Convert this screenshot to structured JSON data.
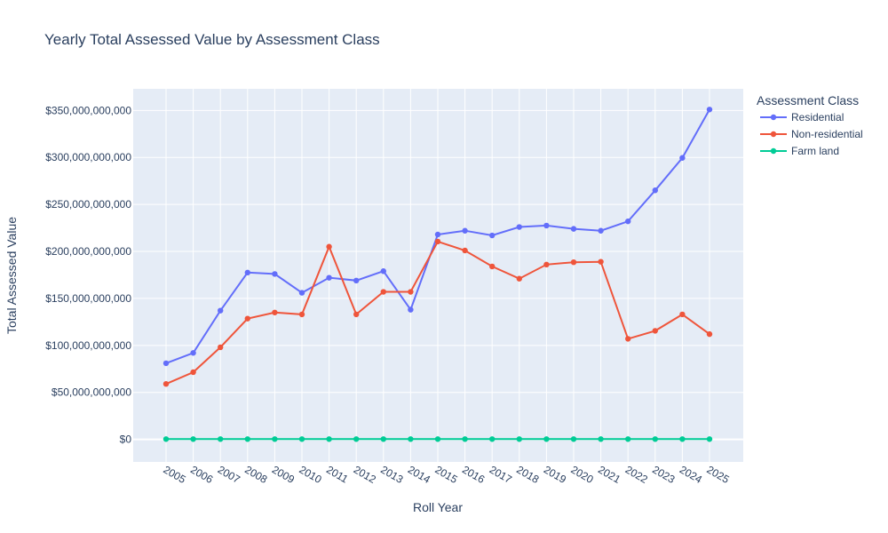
{
  "chart_data": {
    "type": "line",
    "title": "Yearly Total Assessed Value by Assessment Class",
    "xlabel": "Roll Year",
    "ylabel": "Total Assessed Value",
    "x": [
      2005,
      2006,
      2007,
      2008,
      2009,
      2010,
      2011,
      2012,
      2013,
      2014,
      2015,
      2016,
      2017,
      2018,
      2019,
      2020,
      2021,
      2022,
      2023,
      2024,
      2025
    ],
    "ylim": [
      -24000000000,
      373000000000
    ],
    "yticks": [
      0,
      50000000000,
      100000000000,
      150000000000,
      200000000000,
      250000000000,
      300000000000,
      350000000000
    ],
    "ytick_labels": [
      "$0",
      "$50,000,000,000",
      "$100,000,000,000",
      "$150,000,000,000",
      "$200,000,000,000",
      "$250,000,000,000",
      "$300,000,000,000",
      "$350,000,000,000"
    ],
    "grid": true,
    "legend": {
      "title": "Assessment Class",
      "position": "right"
    },
    "series": [
      {
        "name": "Residential",
        "color": "#636efa",
        "values": [
          81000000000,
          92000000000,
          137000000000,
          177500000000,
          176000000000,
          156000000000,
          172000000000,
          169000000000,
          179000000000,
          138000000000,
          218000000000,
          222000000000,
          217000000000,
          226000000000,
          227500000000,
          224000000000,
          222000000000,
          232000000000,
          265000000000,
          299500000000,
          351000000000
        ]
      },
      {
        "name": "Non-residential",
        "color": "#ef553b",
        "values": [
          59000000000,
          71500000000,
          98000000000,
          128500000000,
          135000000000,
          133000000000,
          205000000000,
          133000000000,
          157000000000,
          157000000000,
          210500000000,
          201000000000,
          184000000000,
          171000000000,
          186000000000,
          188500000000,
          189000000000,
          107000000000,
          115500000000,
          133000000000,
          112000000000
        ]
      },
      {
        "name": "Farm land",
        "color": "#00cc96",
        "values": [
          300000000,
          300000000,
          300000000,
          300000000,
          300000000,
          300000000,
          300000000,
          300000000,
          300000000,
          300000000,
          300000000,
          300000000,
          300000000,
          300000000,
          300000000,
          300000000,
          300000000,
          300000000,
          300000000,
          300000000,
          300000000
        ]
      }
    ]
  }
}
